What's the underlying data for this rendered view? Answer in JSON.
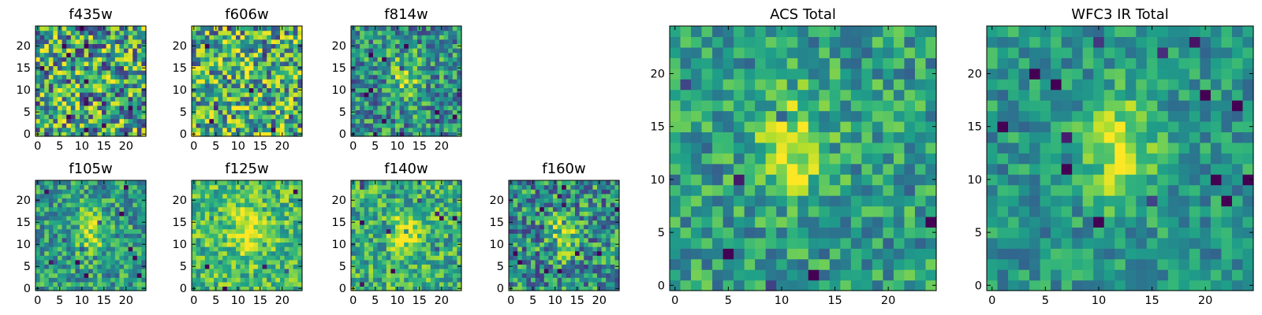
{
  "chart_data": [
    {
      "type": "heatmap",
      "title": "f435w",
      "xlim": [
        0,
        24
      ],
      "ylim": [
        0,
        24
      ],
      "xticks": [
        0,
        5,
        10,
        15,
        20
      ],
      "yticks": [
        0,
        5,
        10,
        15,
        20
      ],
      "colormap": "viridis",
      "source_peak": [
        12,
        13
      ],
      "source_strength": 0.0,
      "noise": 1.0,
      "mean_level": 0.58
    },
    {
      "type": "heatmap",
      "title": "f606w",
      "xlim": [
        0,
        24
      ],
      "ylim": [
        0,
        24
      ],
      "xticks": [
        0,
        5,
        10,
        15,
        20
      ],
      "yticks": [
        0,
        5,
        10,
        15,
        20
      ],
      "colormap": "viridis",
      "source_peak": [
        12,
        13
      ],
      "source_strength": 0.05,
      "noise": 0.95,
      "mean_level": 0.62
    },
    {
      "type": "heatmap",
      "title": "f814w",
      "xlim": [
        0,
        24
      ],
      "ylim": [
        0,
        24
      ],
      "xticks": [
        0,
        5,
        10,
        15,
        20
      ],
      "yticks": [
        0,
        5,
        10,
        15,
        20
      ],
      "colormap": "viridis",
      "source_peak": [
        12,
        13
      ],
      "source_strength": 0.35,
      "noise": 0.7,
      "mean_level": 0.5
    },
    {
      "type": "heatmap",
      "title": "f105w",
      "xlim": [
        0,
        24
      ],
      "ylim": [
        0,
        24
      ],
      "xticks": [
        0,
        5,
        10,
        15,
        20
      ],
      "yticks": [
        0,
        5,
        10,
        15,
        20
      ],
      "colormap": "viridis",
      "source_peak": [
        12,
        13
      ],
      "source_strength": 0.3,
      "noise": 0.6,
      "mean_level": 0.55
    },
    {
      "type": "heatmap",
      "title": "f125w",
      "xlim": [
        0,
        24
      ],
      "ylim": [
        0,
        24
      ],
      "xticks": [
        0,
        5,
        10,
        15,
        20
      ],
      "yticks": [
        0,
        5,
        10,
        15,
        20
      ],
      "colormap": "viridis",
      "source_peak": [
        12,
        13
      ],
      "source_strength": 0.3,
      "noise": 0.55,
      "mean_level": 0.68
    },
    {
      "type": "heatmap",
      "title": "f140w",
      "xlim": [
        0,
        24
      ],
      "ylim": [
        0,
        24
      ],
      "xticks": [
        0,
        5,
        10,
        15,
        20
      ],
      "yticks": [
        0,
        5,
        10,
        15,
        20
      ],
      "colormap": "viridis",
      "source_peak": [
        12,
        12
      ],
      "source_strength": 0.35,
      "noise": 0.6,
      "mean_level": 0.62
    },
    {
      "type": "heatmap",
      "title": "f160w",
      "xlim": [
        0,
        24
      ],
      "ylim": [
        0,
        24
      ],
      "xticks": [
        0,
        5,
        10,
        15,
        20
      ],
      "yticks": [
        0,
        5,
        10,
        15,
        20
      ],
      "colormap": "viridis",
      "source_peak": [
        12,
        12
      ],
      "source_strength": 0.3,
      "noise": 0.75,
      "mean_level": 0.5
    },
    {
      "type": "heatmap",
      "title": "ACS Total",
      "xlim": [
        0,
        24
      ],
      "ylim": [
        0,
        24
      ],
      "xticks": [
        0,
        5,
        10,
        15,
        20
      ],
      "yticks": [
        0,
        5,
        10,
        15,
        20
      ],
      "colormap": "viridis",
      "source_peak": [
        11,
        13
      ],
      "source_strength": 0.35,
      "noise": 0.55,
      "mean_level": 0.55
    },
    {
      "type": "heatmap",
      "title": "WFC3 IR Total",
      "xlim": [
        0,
        24
      ],
      "ylim": [
        0,
        24
      ],
      "xticks": [
        0,
        5,
        10,
        15,
        20
      ],
      "yticks": [
        0,
        5,
        10,
        15,
        20
      ],
      "colormap": "viridis",
      "source_peak": [
        12,
        13
      ],
      "source_strength": 0.4,
      "noise": 0.45,
      "mean_level": 0.52
    }
  ],
  "colors": {
    "viridis_stops": [
      "#440154",
      "#482878",
      "#3e4989",
      "#31688e",
      "#26828e",
      "#1f9e89",
      "#35b779",
      "#6ece58",
      "#b5de2b",
      "#fde725"
    ],
    "axis_frame": "#000000",
    "background": "#ffffff"
  }
}
